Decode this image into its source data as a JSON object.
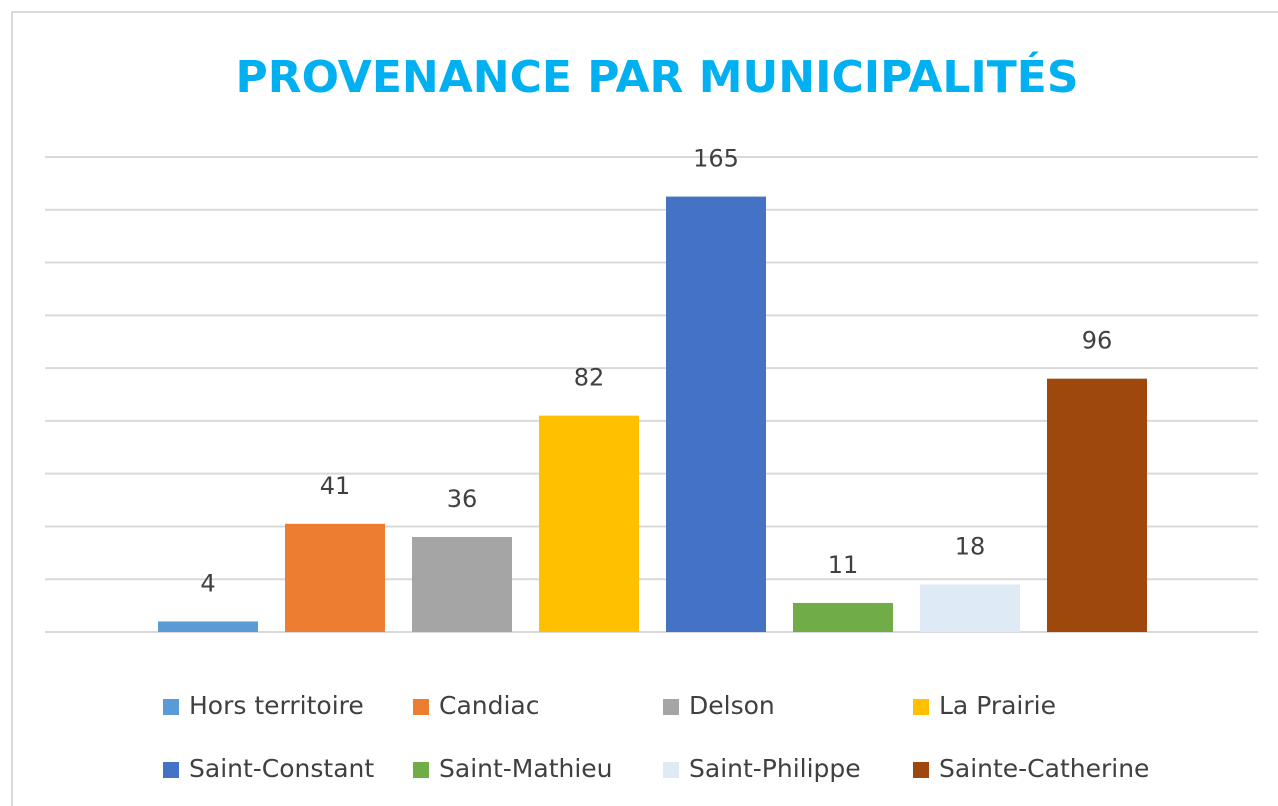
{
  "chart_data": {
    "type": "bar",
    "title": "PROVENANCE PAR MUNICIPALITÉS",
    "categories": [
      "Hors territoire",
      "Candiac",
      "Delson",
      "La Prairie",
      "Saint-Constant",
      "Saint-Mathieu",
      "Saint-Philippe",
      "Sainte-Catherine"
    ],
    "values": [
      4,
      41,
      36,
      82,
      165,
      11,
      18,
      96
    ],
    "colors": [
      "#5b9bd5",
      "#ed7d31",
      "#a5a5a5",
      "#ffc000",
      "#4472c4",
      "#70ad47",
      "#deebf7",
      "#9e480e"
    ],
    "ylim": [
      0,
      180
    ],
    "yticks": [
      0,
      20,
      40,
      60,
      80,
      100,
      120,
      140,
      160,
      180
    ],
    "grid": true
  }
}
